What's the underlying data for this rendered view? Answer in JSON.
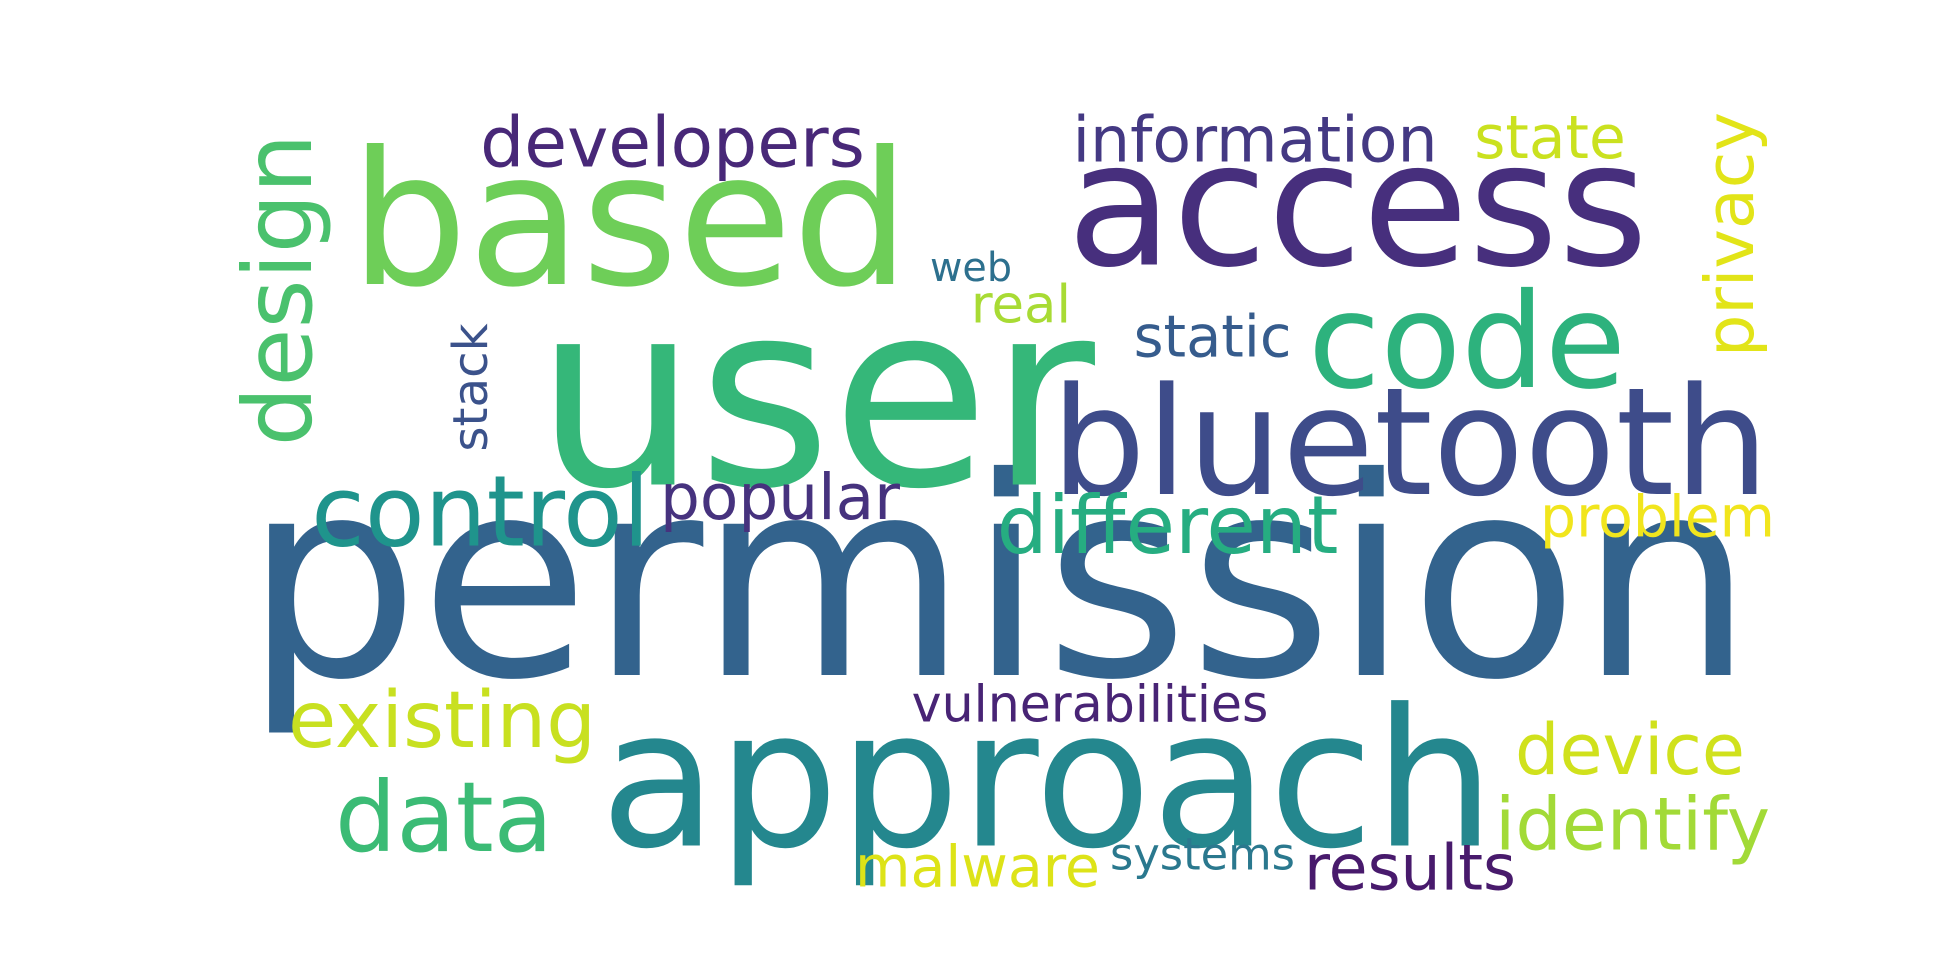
{
  "words": [
    {
      "text": "permission",
      "color": "#33638d"
    },
    {
      "text": "user",
      "color": "#35b779"
    },
    {
      "text": "approach",
      "color": "#24878e"
    },
    {
      "text": "access",
      "color": "#472f7d"
    },
    {
      "text": "based",
      "color": "#6ece58"
    },
    {
      "text": "bluetooth",
      "color": "#3e4c8a"
    },
    {
      "text": "code",
      "color": "#2db27d"
    },
    {
      "text": "control",
      "color": "#1f948c"
    },
    {
      "text": "design",
      "color": "#4ac16d"
    },
    {
      "text": "data",
      "color": "#3bbb75"
    },
    {
      "text": "different",
      "color": "#26ad81"
    },
    {
      "text": "existing",
      "color": "#c8e020"
    },
    {
      "text": "device",
      "color": "#d0e11c"
    },
    {
      "text": "identify",
      "color": "#a2da37"
    },
    {
      "text": "developers",
      "color": "#482878"
    },
    {
      "text": "information",
      "color": "#443983"
    },
    {
      "text": "popular",
      "color": "#46327e"
    },
    {
      "text": "state",
      "color": "#cae11f"
    },
    {
      "text": "privacy",
      "color": "#e2e418"
    },
    {
      "text": "problem",
      "color": "#f1e51d"
    },
    {
      "text": "static",
      "color": "#365c8d"
    },
    {
      "text": "stack",
      "color": "#3b528b"
    },
    {
      "text": "malware",
      "color": "#dde318"
    },
    {
      "text": "results",
      "color": "#481a6c"
    },
    {
      "text": "systems",
      "color": "#2a788e"
    },
    {
      "text": "vulnerabilities",
      "color": "#482475"
    },
    {
      "text": "real",
      "color": "#a8db34"
    },
    {
      "text": "web",
      "color": "#2d708e"
    }
  ]
}
